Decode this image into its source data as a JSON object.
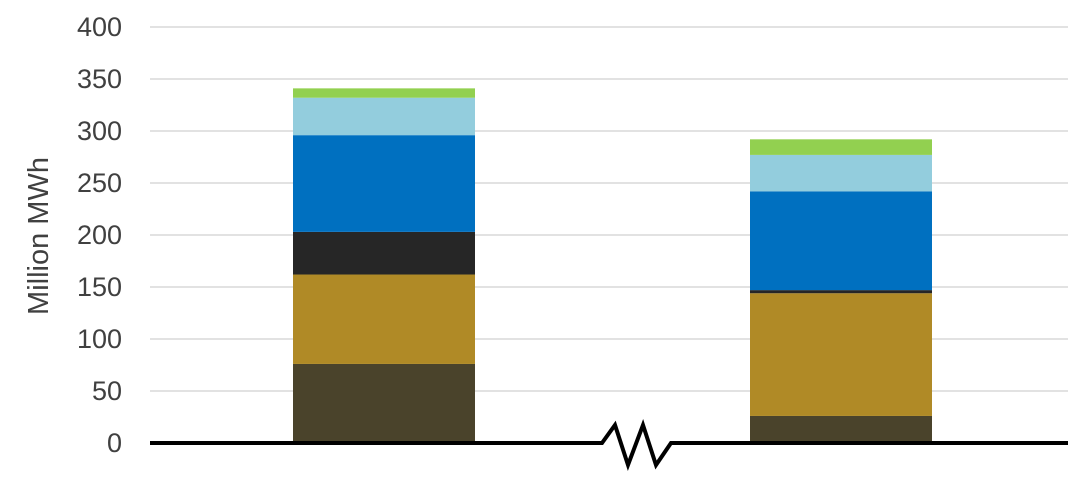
{
  "chart_data": {
    "type": "bar",
    "stacked": true,
    "categories": [
      "",
      ""
    ],
    "series": [
      {
        "color": "#4a432b",
        "values": [
          76,
          26
        ]
      },
      {
        "color": "#b08a26",
        "values": [
          86,
          118
        ]
      },
      {
        "color": "#262626",
        "values": [
          41,
          3
        ]
      },
      {
        "color": "#0070c0",
        "values": [
          93,
          95
        ]
      },
      {
        "color": "#93cddd",
        "values": [
          36,
          35
        ]
      },
      {
        "color": "#92d050",
        "values": [
          9,
          15
        ]
      }
    ],
    "ylabel": "Million MWh",
    "ylim": [
      0,
      400
    ],
    "yticks": [
      0,
      50,
      100,
      150,
      200,
      250,
      300,
      350,
      400
    ],
    "grid": true,
    "axis_break": true
  }
}
